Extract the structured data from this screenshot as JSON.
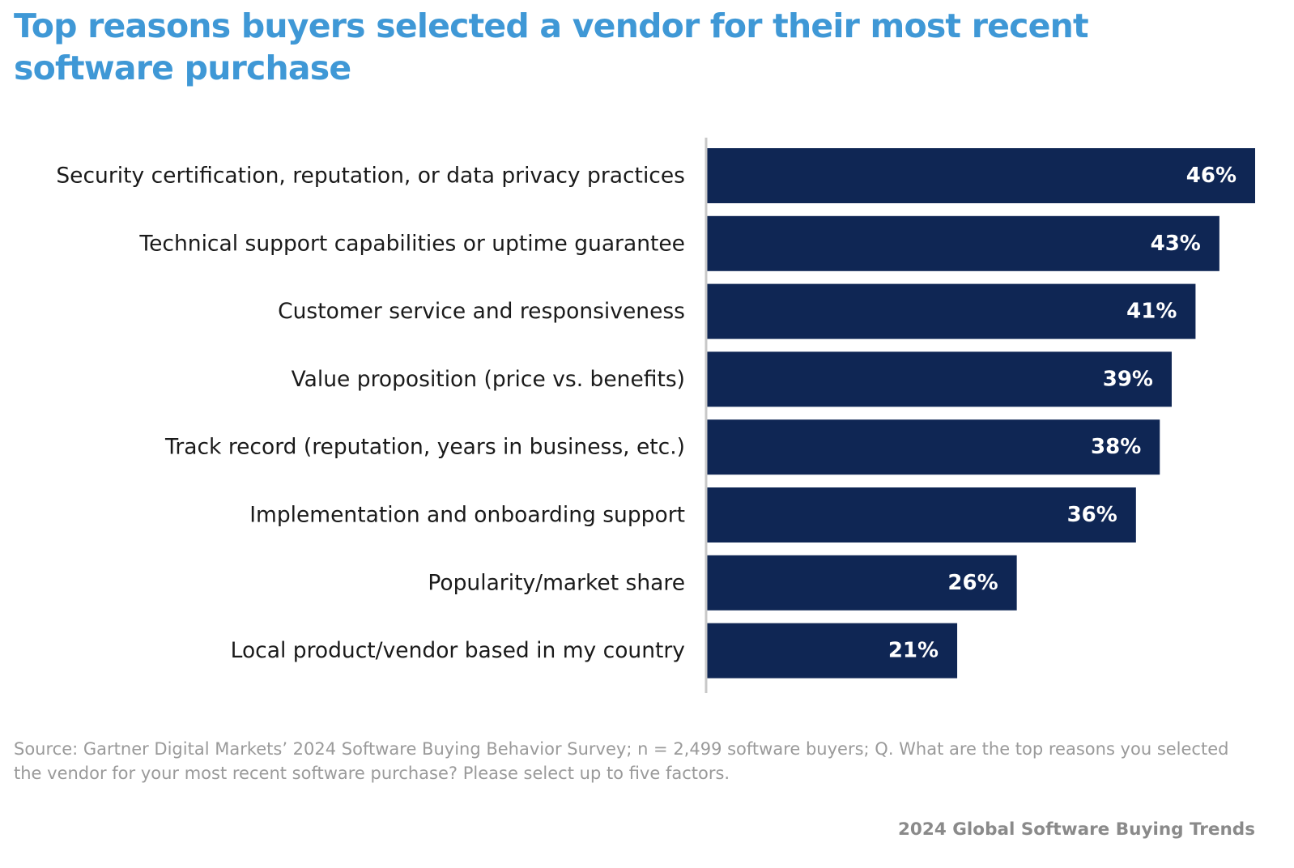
{
  "chart_data": {
    "type": "bar",
    "orientation": "horizontal",
    "title": "Top reasons buyers selected a vendor for their most recent software purchase",
    "categories": [
      "Security certification, reputation, or data privacy practices",
      "Technical support capabilities or uptime guarantee",
      "Customer service and responsiveness",
      "Value proposition (price vs. benefits)",
      "Track record (reputation, years in business, etc.)",
      "Implementation and onboarding support",
      "Popularity/market share",
      "Local product/vendor based in my country"
    ],
    "values": [
      46,
      43,
      41,
      39,
      38,
      36,
      26,
      21
    ],
    "value_labels": [
      "46%",
      "43%",
      "41%",
      "39%",
      "38%",
      "36%",
      "26%",
      "21%"
    ],
    "xlim": [
      0,
      46
    ],
    "grid": false,
    "legend": "none",
    "bar_color": "#0f2654",
    "value_label_color": "#ffffff"
  },
  "source_note": "Source: Gartner Digital Markets’ 2024 Software Buying Behavior Survey; n = 2,499 software buyers; Q. What are the top reasons you selected the vendor for your most recent software purchase? Please select up to five factors.",
  "footer": "2024 Global Software Buying Trends",
  "colors": {
    "title": "#3f98d6",
    "axis": "#c8c8c8",
    "source": "#9a9a9a",
    "footer": "#8a8a8a"
  }
}
